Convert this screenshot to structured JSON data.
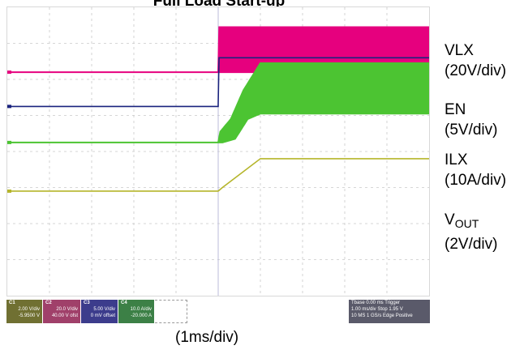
{
  "chart_data": {
    "type": "line",
    "title": "Full Load Start-up",
    "xlabel": "(1ms/div)",
    "x_unit": "ms",
    "x_divisions": 10,
    "y_divisions": 8,
    "grid": true,
    "series": [
      {
        "name": "VLX",
        "scale": "(20V/div)",
        "color": "#e6007e",
        "style": "switching-band",
        "points": [
          [
            0,
            2.2
          ],
          [
            5.0,
            2.2
          ],
          [
            5.02,
            2.2
          ],
          [
            5.02,
            3.45
          ],
          [
            10,
            3.45
          ]
        ],
        "band_low": [
          [
            5.02,
            2.2
          ],
          [
            5.5,
            2.2
          ],
          [
            10,
            2.2
          ]
        ],
        "envelope_peak_start": [
          5.02,
          3.45
        ]
      },
      {
        "name": "EN",
        "scale": "(5V/div)",
        "color": "#1a237e",
        "style": "line",
        "points": [
          [
            0,
            1.25
          ],
          [
            5.0,
            1.25
          ],
          [
            5.0,
            1.32
          ],
          [
            5.02,
            2.6
          ],
          [
            10,
            2.6
          ]
        ]
      },
      {
        "name": "ILX",
        "scale": "(10A/div)",
        "color": "#4cc432",
        "style": "switching-band",
        "points": [
          [
            0,
            0.25
          ],
          [
            5.0,
            0.25
          ],
          [
            5.05,
            0.55
          ],
          [
            5.3,
            0.9
          ],
          [
            5.6,
            1.7
          ],
          [
            6.0,
            2.45
          ],
          [
            10,
            2.45
          ]
        ],
        "band_low": [
          [
            0,
            0.25
          ],
          [
            5.0,
            0.25
          ],
          [
            5.1,
            0.25
          ],
          [
            5.4,
            0.35
          ],
          [
            5.7,
            0.9
          ],
          [
            6.0,
            1.05
          ],
          [
            10,
            1.05
          ]
        ]
      },
      {
        "name": "VOUT",
        "scale": "(2V/div)",
        "color": "#b5b52a",
        "style": "line",
        "points": [
          [
            0,
            -1.1
          ],
          [
            5.0,
            -1.1
          ],
          [
            5.1,
            -1.0
          ],
          [
            6.0,
            -0.2
          ],
          [
            10,
            -0.2
          ]
        ]
      }
    ],
    "channel_status": {
      "ch1": {
        "label": "C1",
        "line1": "2.00 V/div",
        "line2": "-5.9500 V"
      },
      "ch2": {
        "label": "C2",
        "line1": "20.0 V/div",
        "line2": "40.00 V ofst"
      },
      "ch3": {
        "label": "C3",
        "line1": "5.00 V/div",
        "line2": "0 mV offset"
      },
      "ch4": {
        "label": "C4",
        "line1": "10.0 A/div",
        "line2": "-20.000 A"
      },
      "trigger": {
        "row1": "Tbase    0.00 ms  Trigger",
        "row2": "1.00 ms/div  Stop   1.95 V",
        "row3": "10 MS   1 GS/s  Edge  Positive"
      }
    }
  },
  "labels": {
    "vlx": "VLX",
    "vlx_scale": "(20V/div)",
    "en": "EN",
    "en_scale": "(5V/div)",
    "ilx": "ILX",
    "ilx_scale": "(10A/div)",
    "vout_main": "V",
    "vout_sub": "OUT",
    "vout_scale": "(2V/div)"
  }
}
